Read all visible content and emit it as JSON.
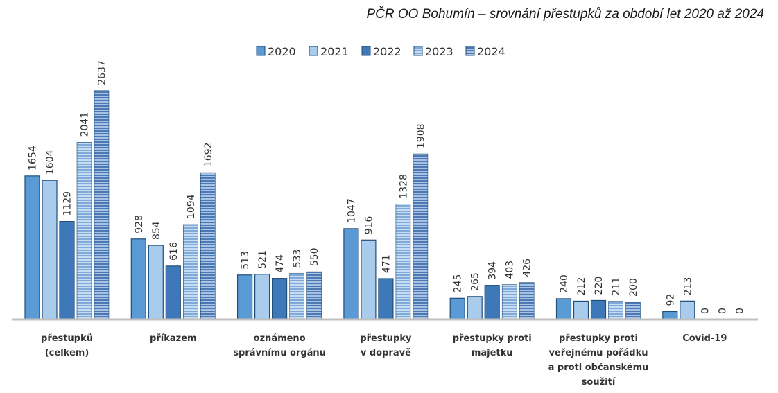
{
  "title": "PČR OO Bohumín – srovnání přestupků za období let 2020 až 2024",
  "chart_data": {
    "type": "bar",
    "title": "PČR OO Bohumín – srovnání přestupků za období let 2020 až 2024",
    "categories": [
      [
        "přestupků",
        "(celkem)"
      ],
      [
        "příkazem"
      ],
      [
        "oznámeno",
        "správnímu orgánu"
      ],
      [
        "přestupky",
        "v dopravě"
      ],
      [
        "přestupky proti",
        "majetku"
      ],
      [
        "přestupky proti",
        "veřejnému pořádku",
        "a proti občanskému",
        "soužití"
      ],
      [
        "Covid-19"
      ]
    ],
    "series": [
      {
        "name": "2020",
        "values": [
          1654,
          928,
          513,
          1047,
          245,
          240,
          92
        ],
        "color": "#5b9bd5",
        "pattern": "solid"
      },
      {
        "name": "2021",
        "values": [
          1604,
          854,
          521,
          916,
          265,
          212,
          213
        ],
        "color": "#a9cbec",
        "pattern": "solid"
      },
      {
        "name": "2022",
        "values": [
          1129,
          616,
          474,
          471,
          394,
          220,
          0
        ],
        "color": "#3f78b8",
        "pattern": "solid"
      },
      {
        "name": "2023",
        "values": [
          2041,
          1094,
          533,
          1328,
          403,
          211,
          0
        ],
        "color": "#8fb6e0",
        "pattern": "stripes"
      },
      {
        "name": "2024",
        "values": [
          2637,
          1692,
          550,
          1908,
          426,
          200,
          0
        ],
        "color": "#5f8cc4",
        "pattern": "stripes"
      }
    ],
    "ylim": [
      0,
      2900
    ],
    "legend": "top-center",
    "grid": false,
    "data_labels": true
  }
}
